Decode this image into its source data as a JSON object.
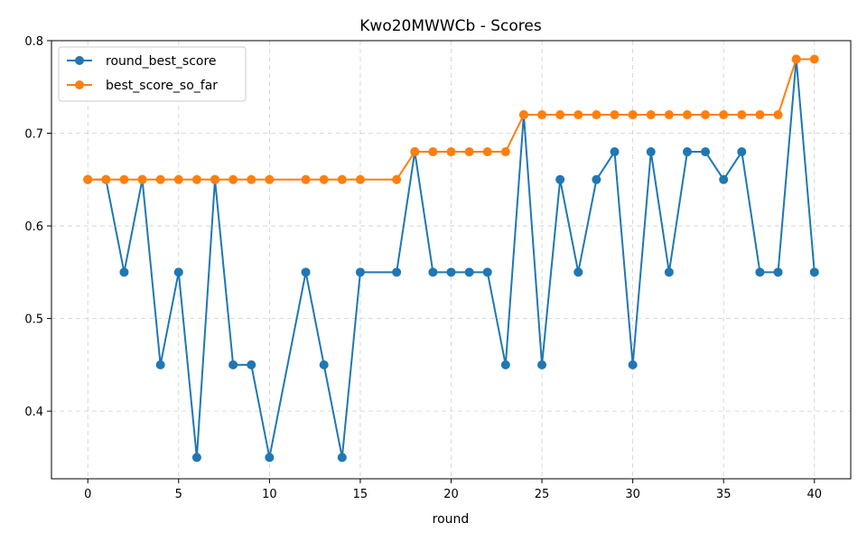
{
  "chart_data": {
    "type": "line",
    "title": "Kwo20MWWCb - Scores",
    "xlabel": "round",
    "ylabel": "",
    "xlim": [
      -2,
      42
    ],
    "ylim": [
      0.327,
      0.8
    ],
    "xticks": [
      0,
      5,
      10,
      15,
      20,
      25,
      30,
      35,
      40
    ],
    "xtick_labels": [
      "0",
      "5",
      "10",
      "15",
      "20",
      "25",
      "30",
      "35",
      "40"
    ],
    "yticks": [
      0.4,
      0.5,
      0.6,
      0.7,
      0.8
    ],
    "ytick_labels": [
      "0.4",
      "0.5",
      "0.6",
      "0.7",
      "0.8"
    ],
    "grid": true,
    "legend_position": "top-left",
    "series": [
      {
        "name": "round_best_score",
        "color": "#1f77b4",
        "x": [
          0,
          1,
          2,
          3,
          4,
          5,
          6,
          7,
          8,
          9,
          10,
          12,
          13,
          14,
          15,
          17,
          18,
          19,
          20,
          21,
          22,
          23,
          24,
          25,
          26,
          27,
          28,
          29,
          30,
          31,
          32,
          33,
          34,
          35,
          36,
          37,
          38,
          39,
          40
        ],
        "y": [
          0.65,
          0.65,
          0.55,
          0.65,
          0.45,
          0.55,
          0.35,
          0.65,
          0.45,
          0.45,
          0.35,
          0.55,
          0.45,
          0.35,
          0.55,
          0.55,
          0.68,
          0.55,
          0.55,
          0.55,
          0.55,
          0.45,
          0.72,
          0.45,
          0.65,
          0.55,
          0.65,
          0.68,
          0.45,
          0.68,
          0.55,
          0.68,
          0.68,
          0.65,
          0.68,
          0.55,
          0.55,
          0.78,
          0.55
        ]
      },
      {
        "name": "best_score_so_far",
        "color": "#ff7f0e",
        "x": [
          0,
          1,
          2,
          3,
          4,
          5,
          6,
          7,
          8,
          9,
          10,
          12,
          13,
          14,
          15,
          17,
          18,
          19,
          20,
          21,
          22,
          23,
          24,
          25,
          26,
          27,
          28,
          29,
          30,
          31,
          32,
          33,
          34,
          35,
          36,
          37,
          38,
          39,
          40
        ],
        "y": [
          0.65,
          0.65,
          0.65,
          0.65,
          0.65,
          0.65,
          0.65,
          0.65,
          0.65,
          0.65,
          0.65,
          0.65,
          0.65,
          0.65,
          0.65,
          0.65,
          0.68,
          0.68,
          0.68,
          0.68,
          0.68,
          0.68,
          0.72,
          0.72,
          0.72,
          0.72,
          0.72,
          0.72,
          0.72,
          0.72,
          0.72,
          0.72,
          0.72,
          0.72,
          0.72,
          0.72,
          0.72,
          0.78,
          0.78
        ]
      }
    ]
  }
}
